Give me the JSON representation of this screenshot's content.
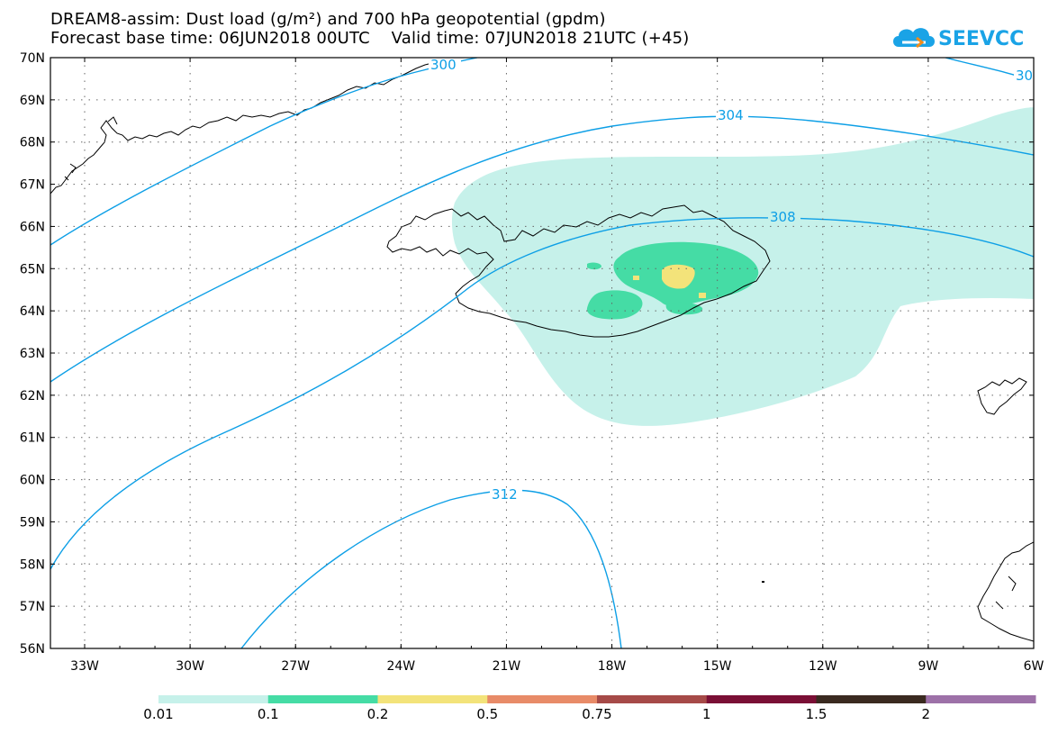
{
  "title": {
    "line1": "DREAM8-assim: Dust load (g/m²) and 700 hPa geopotential (gpdm)",
    "line2": "Forecast base time: 06JUN2018 00UTC    Valid time: 07JUN2018 21UTC (+45)"
  },
  "logo": {
    "text": "SEEVCCC",
    "icon": "cloud-icon",
    "color": "#1aa3e6"
  },
  "map": {
    "lat_labels": [
      "70N",
      "69N",
      "68N",
      "67N",
      "66N",
      "65N",
      "64N",
      "63N",
      "62N",
      "61N",
      "60N",
      "59N",
      "58N",
      "57N",
      "56N"
    ],
    "lon_labels": [
      "33W",
      "30W",
      "27W",
      "24W",
      "21W",
      "18W",
      "15W",
      "12W",
      "9W",
      "6W"
    ],
    "contour_labels": [
      "300",
      "304",
      "308",
      "312",
      "30"
    ],
    "contour_color": "#0d9fe6"
  },
  "colorbar": {
    "labels": [
      "0.01",
      "0.1",
      "0.2",
      "0.5",
      "0.75",
      "1",
      "1.5",
      "2"
    ],
    "colors": [
      "#c6f1ea",
      "#45dca5",
      "#f3e37a",
      "#e88b68",
      "#a64a48",
      "#7a0f35",
      "#3a2a20",
      "#9d71a8"
    ]
  }
}
